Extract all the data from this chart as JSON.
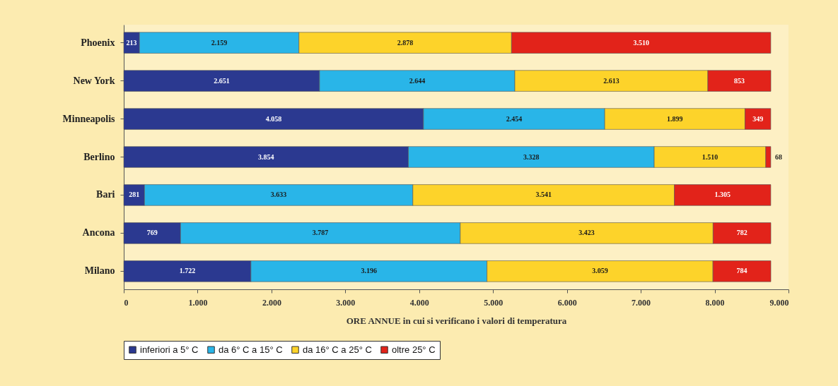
{
  "chart_data": {
    "type": "bar",
    "orientation": "horizontal",
    "stacked": true,
    "xlabel": "ORE ANNUE in cui si verificano i valori di temperatura",
    "categories": [
      "Phoenix",
      "New York",
      "Minneapolis",
      "Berlino",
      "Bari",
      "Ancona",
      "Milano"
    ],
    "series": [
      {
        "name": "inferiori a 5° C",
        "color": "#2b3990",
        "values": [
          213,
          2651,
          4058,
          3854,
          281,
          769,
          1722
        ],
        "value_labels": [
          "213",
          "2.651",
          "4.058",
          "3.854",
          "281",
          "769",
          "1.722"
        ]
      },
      {
        "name": "da 6° C a 15° C",
        "color": "#29b5e8",
        "values": [
          2159,
          2644,
          2454,
          3328,
          3633,
          3787,
          3196
        ],
        "value_labels": [
          "2.159",
          "2.644",
          "2.454",
          "3.328",
          "3.633",
          "3.787",
          "3.196"
        ]
      },
      {
        "name": "da 16° C a 25° C",
        "color": "#fdd32a",
        "values": [
          2878,
          2613,
          1899,
          1510,
          3541,
          3423,
          3059
        ],
        "value_labels": [
          "2.878",
          "2.613",
          "1.899",
          "1.510",
          "3.541",
          "3.423",
          "3.059"
        ]
      },
      {
        "name": "oltre 25° C",
        "color": "#e2231a",
        "values": [
          3510,
          853,
          349,
          68,
          1305,
          782,
          784
        ],
        "value_labels": [
          "3.510",
          "853",
          "349",
          "68",
          "1.305",
          "782",
          "784"
        ]
      }
    ],
    "xlim": [
      0,
      9000
    ],
    "xticks": [
      {
        "value": 0,
        "label": "0"
      },
      {
        "value": 1000,
        "label": "1.000"
      },
      {
        "value": 2000,
        "label": "2.000"
      },
      {
        "value": 3000,
        "label": "3.000"
      },
      {
        "value": 4000,
        "label": "4.000"
      },
      {
        "value": 5000,
        "label": "5.000"
      },
      {
        "value": 6000,
        "label": "6.000"
      },
      {
        "value": 7000,
        "label": "7.000"
      },
      {
        "value": 8000,
        "label": "8.000"
      },
      {
        "value": 9000,
        "label": "9.000"
      }
    ],
    "grid": false,
    "legend": "bottom"
  }
}
